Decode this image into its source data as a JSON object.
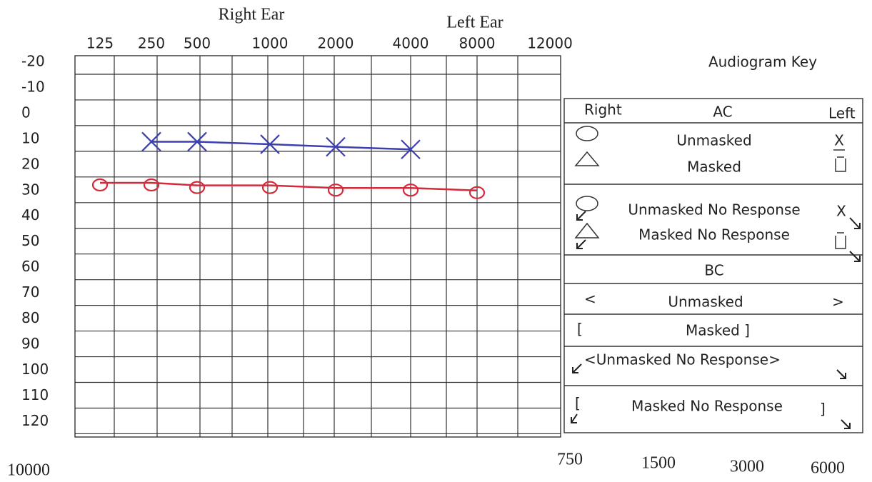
{
  "chart_data": {
    "type": "line",
    "categories": [
      "125",
      "250",
      "500",
      "1000",
      "2000",
      "4000",
      "8000",
      "12000"
    ],
    "series": [
      {
        "name": "Right Ear",
        "color": "#d42b3a",
        "marker": "circle",
        "values": [
          27,
          27,
          28,
          28,
          29,
          29,
          30,
          null
        ]
      },
      {
        "name": "Left Ear",
        "color": "#3b3fb0",
        "marker": "x",
        "values": [
          null,
          11,
          11,
          12,
          13,
          14,
          null,
          null
        ]
      }
    ],
    "ylim": [
      -22.5,
      126
    ],
    "y_inverted": true,
    "yticks": [
      -20,
      -10,
      0,
      10,
      20,
      30,
      40,
      50,
      60,
      70,
      80,
      90,
      100,
      110,
      120
    ],
    "grid": true,
    "bottom_labels": [
      "10000",
      "750",
      "1500",
      "3000",
      "6000"
    ]
  },
  "key": {
    "title": "Audiogram Key",
    "ac_header": {
      "right": "Right",
      "center": "AC",
      "left": "Left"
    },
    "ac_rows": [
      {
        "label": "Unmasked",
        "left_symbol": "X"
      },
      {
        "label": "Masked"
      }
    ],
    "ac_nr_rows": [
      {
        "label": "Unmasked No Response",
        "left_symbol": "X"
      },
      {
        "label": "Masked No Response"
      }
    ],
    "bc_header": "BC",
    "bc_unmasked": {
      "right": "<",
      "label": "Unmasked",
      "left": ">"
    },
    "bc_masked": {
      "right": "[",
      "label": "Masked ]"
    },
    "bc_unmasked_nr": "<Unmasked No Response>",
    "bc_masked_nr": {
      "right": "[",
      "label": "Masked No Response",
      "left": "]"
    }
  }
}
